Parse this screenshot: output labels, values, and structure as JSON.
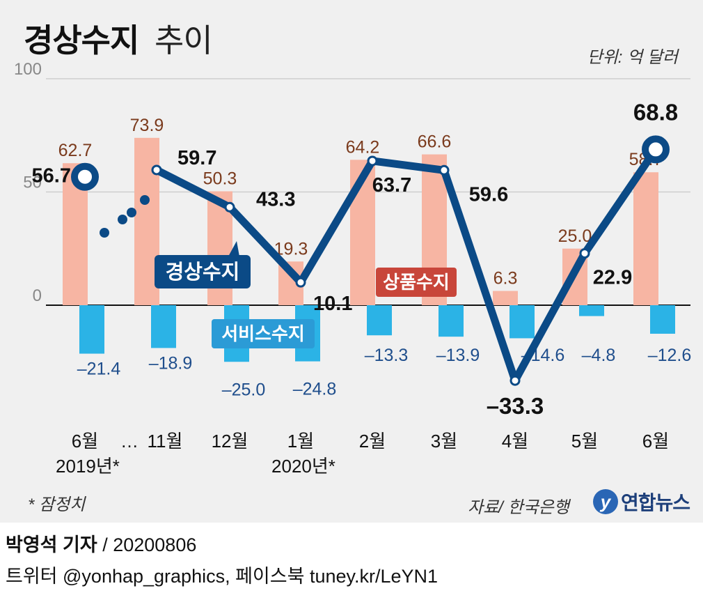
{
  "title": {
    "main": "경상수지",
    "sub": "추이"
  },
  "unit_label": "단위: 억 달러",
  "note": "* 잠정치",
  "source": "자료/ 한국은행",
  "logo": {
    "mark": "y",
    "text": "연합뉴스"
  },
  "credit": {
    "author": "박영석 기자",
    "date": "/ 20200806"
  },
  "social": "트위터 @yonhap_graphics, 페이스북 tuney.kr/LeYN1",
  "colors": {
    "goods": "#f7b5a3",
    "goods_label": "#7a3a1c",
    "services": "#2bb3e6",
    "services_label": "#1f4e8c",
    "current": "#0b4a86",
    "goods_tag": "#c8463a",
    "services_tag": "#2b9bd6"
  },
  "chart_data": {
    "type": "bar+line",
    "categories": [
      "6월",
      "11월",
      "12월",
      "1월",
      "2월",
      "3월",
      "4월",
      "5월",
      "6월"
    ],
    "category_sublabels": [
      "2019년*",
      "",
      "",
      "2020년*",
      "",
      "",
      "",
      "",
      ""
    ],
    "gap_marker": "…",
    "yticks": [
      100,
      50,
      0
    ],
    "ylim": [
      -40,
      100
    ],
    "series": [
      {
        "name": "상품수지",
        "kind": "bar",
        "values": [
          62.7,
          73.9,
          50.3,
          19.3,
          64.2,
          66.6,
          6.3,
          25.0,
          58.7
        ],
        "labels": [
          "62.7",
          "73.9",
          "50.3",
          "19.3",
          "64.2",
          "66.6",
          "6.3",
          "25.0",
          "58.7"
        ]
      },
      {
        "name": "서비스수지",
        "kind": "bar",
        "values": [
          -21.4,
          -18.9,
          -25.0,
          -24.8,
          -13.3,
          -13.9,
          -14.6,
          -4.8,
          -12.6
        ],
        "labels": [
          "–21.4",
          "–18.9",
          "–25.0",
          "–24.8",
          "–13.3",
          "–13.9",
          "–14.6",
          "–4.8",
          "–12.6"
        ]
      },
      {
        "name": "경상수지",
        "kind": "line",
        "values": [
          56.7,
          59.7,
          43.3,
          10.1,
          63.7,
          59.6,
          -33.3,
          22.9,
          68.8
        ],
        "labels": [
          "56.7",
          "59.7",
          "43.3",
          "10.1",
          "63.7",
          "59.6",
          "–33.3",
          "22.9",
          "68.8"
        ]
      }
    ]
  }
}
